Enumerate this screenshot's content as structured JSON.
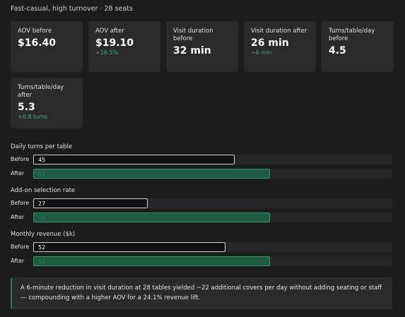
{
  "header": "Fast-casual, high turnover · 28 seats",
  "cards": [
    {
      "label": "AOV before",
      "value": "$16.40"
    },
    {
      "label": "AOV after",
      "value": "$19.10",
      "delta": "+16.5%"
    },
    {
      "label": "Visit duration before",
      "value": "32 min"
    },
    {
      "label": "Visit duration after",
      "value": "26 min",
      "delta": "−6 min"
    },
    {
      "label": "Turns/table/day before",
      "value": "4.5"
    },
    {
      "label": "Turns/table/day after",
      "value": "5.3",
      "delta": "+0.8 turns"
    }
  ],
  "comparisons": [
    {
      "title": "Daily turns per table",
      "rows": [
        {
          "label": "Before",
          "value": 45
        },
        {
          "label": "After",
          "value": 53
        }
      ]
    },
    {
      "title": "Add-on selection rate",
      "rows": [
        {
          "label": "Before",
          "value": 27
        },
        {
          "label": "After",
          "value": 56
        }
      ]
    },
    {
      "title": "Monthly revenue ($k)",
      "rows": [
        {
          "label": "Before",
          "value": 52
        },
        {
          "label": "After",
          "value": 64
        }
      ]
    }
  ],
  "note": "A 6-minute reduction in visit duration at 28 tables yielded ~22 additional covers per day without adding seating or staff — compounding with a higher AOV for a 24.1% revenue lift."
}
